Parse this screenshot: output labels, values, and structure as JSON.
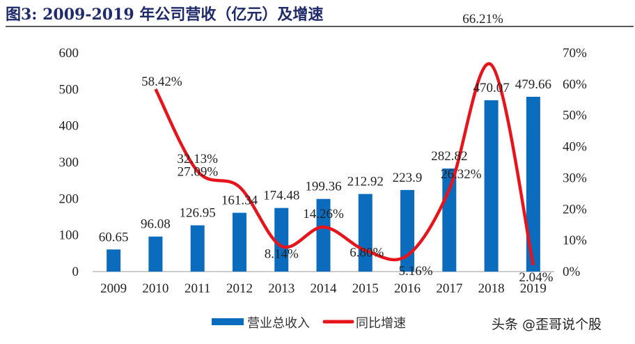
{
  "title": "图3:    2009-2019 年公司营收（亿元）及增速",
  "watermark": "头条 @歪哥说个股",
  "colors": {
    "bar": "#0b6cbd",
    "line": "#e8141b",
    "title": "#1f2a6b"
  },
  "chart_data": {
    "type": "bar+line",
    "categories": [
      "2009",
      "2010",
      "2011",
      "2012",
      "2013",
      "2014",
      "2015",
      "2016",
      "2017",
      "2018",
      "2019"
    ],
    "series": [
      {
        "name": "营业总收入",
        "type": "bar",
        "axis": "left",
        "values": [
          60.65,
          96.08,
          126.95,
          161.34,
          174.48,
          199.36,
          212.92,
          223.9,
          282.82,
          470.07,
          479.66
        ],
        "labels": [
          "60.65",
          "96.08",
          "126.95",
          "161.34",
          "174.48",
          "199.36",
          "212.92",
          "223.9",
          "282.82",
          "470.07",
          "479.66"
        ]
      },
      {
        "name": "同比增速",
        "type": "line",
        "axis": "right",
        "smooth": true,
        "values": [
          null,
          58.42,
          32.13,
          27.09,
          8.14,
          14.26,
          6.8,
          5.16,
          26.32,
          66.21,
          2.04
        ],
        "labels": [
          "",
          "58.42%",
          "32.13%",
          "27.09%",
          "8.14%",
          "14.26%",
          "6.80%",
          "5.16%",
          "26.32%",
          "66.21%",
          "2.04%"
        ]
      }
    ],
    "y_left": {
      "range": [
        0,
        600
      ],
      "ticks": [
        "0",
        "100",
        "200",
        "300",
        "400",
        "500",
        "600"
      ]
    },
    "y_right": {
      "range": [
        0,
        70
      ],
      "ticks": [
        "0%",
        "10%",
        "20%",
        "30%",
        "40%",
        "50%",
        "60%",
        "70%"
      ]
    },
    "grid": false,
    "legend": "bottom"
  }
}
